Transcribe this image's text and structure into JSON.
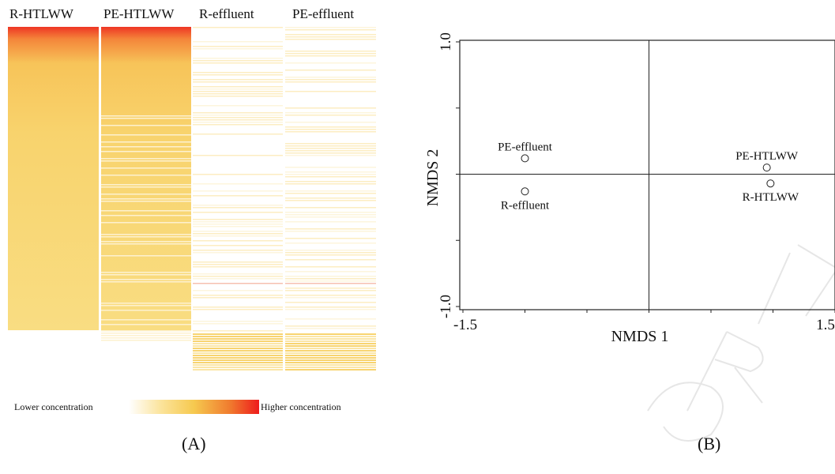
{
  "panels": {
    "a_label": "(A)",
    "b_label": "(B)"
  },
  "heatmap": {
    "columns": [
      "R-HTLWW",
      "PE-HTLWW",
      "R-effluent",
      "PE-effluent"
    ],
    "legend_low": "Lower concentration",
    "legend_high": "Higher concentration",
    "colors": {
      "low": "#ffffff",
      "mid": "#f6d060",
      "high": "#ee1c1c"
    }
  },
  "chart_data": {
    "type": "scatter",
    "xlabel": "NMDS 1",
    "ylabel": "NMDS 2",
    "xlim": [
      -1.5,
      1.5
    ],
    "ylim": [
      -1.0,
      1.0
    ],
    "x_ticks": [
      "-1.5",
      "1.5"
    ],
    "y_ticks": [
      "-1.0",
      "1.0"
    ],
    "points": [
      {
        "label": "PE-effluent",
        "x": -1.0,
        "y": 0.12
      },
      {
        "label": "R-effluent",
        "x": -1.0,
        "y": -0.13
      },
      {
        "label": "PE-HTLWW",
        "x": 0.95,
        "y": 0.05
      },
      {
        "label": "R-HTLWW",
        "x": 0.98,
        "y": -0.07
      }
    ]
  }
}
